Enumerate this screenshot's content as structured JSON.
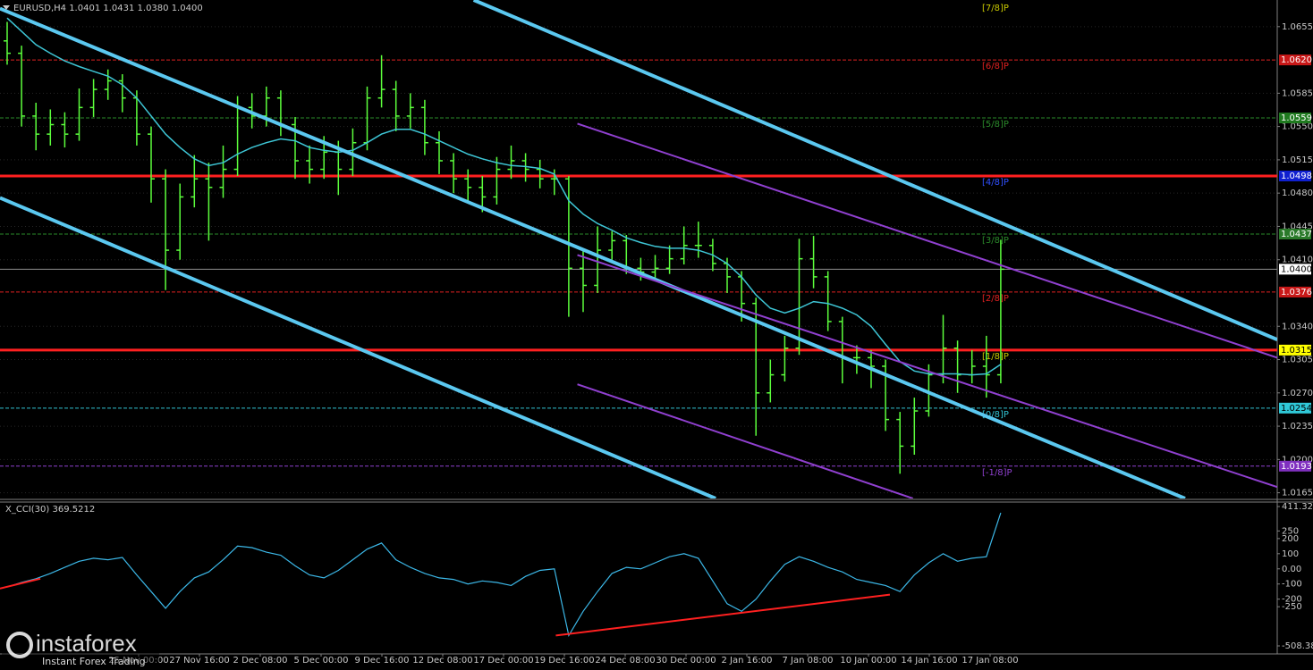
{
  "chart_data": {
    "type": "candlestick",
    "title": "EURUSD,H4  1.0401 1.0431 1.0380 1.0400",
    "x_labels": [
      "25 Nov 00:00",
      "27 Nov 16:00",
      "2 Dec 08:00",
      "5 Dec 00:00",
      "9 Dec 16:00",
      "12 Dec 08:00",
      "17 Dec 00:00",
      "19 Dec 16:00",
      "24 Dec 08:00",
      "30 Dec 00:00",
      "2 Jan 16:00",
      "7 Jan 08:00",
      "10 Jan 00:00",
      "14 Jan 16:00",
      "17 Jan 08:00"
    ],
    "color": "#5cff3c",
    "open": [
      1.064,
      1.0627,
      1.0561,
      1.0542,
      1.0552,
      1.0542,
      1.057,
      1.0589,
      1.0598,
      1.058,
      1.0542,
      1.0495,
      1.042,
      1.0476,
      1.0495,
      1.0486,
      1.0505,
      1.057,
      1.0561,
      1.058,
      1.0552,
      1.0514,
      1.0505,
      1.0523,
      1.0505,
      1.0533,
      1.058,
      1.0589,
      1.0561,
      1.057,
      1.0533,
      1.0514,
      1.0495,
      1.0486,
      1.0476,
      1.0505,
      1.0514,
      1.0505,
      1.0495,
      1.0495,
      1.0401,
      1.0383,
      1.042,
      1.043,
      1.0401,
      1.0397,
      1.0401,
      1.0411,
      1.0425,
      1.0425,
      1.0406,
      1.0392,
      1.0364,
      1.027,
      1.0289,
      1.0317,
      1.0411,
      1.0392,
      1.0345,
      1.0307,
      1.0307,
      1.0298,
      1.0242,
      1.0214,
      1.0251,
      1.0289,
      1.0317,
      1.0289,
      1.0298,
      1.0289
    ],
    "high": [
      1.066,
      1.0635,
      1.0575,
      1.0568,
      1.0565,
      1.059,
      1.06,
      1.061,
      1.0605,
      1.0588,
      1.055,
      1.0505,
      1.049,
      1.052,
      1.0512,
      1.053,
      1.0582,
      1.0585,
      1.0592,
      1.0588,
      1.056,
      1.053,
      1.054,
      1.0535,
      1.0548,
      1.0592,
      1.0625,
      1.0598,
      1.0585,
      1.0578,
      1.0545,
      1.0522,
      1.0505,
      1.0498,
      1.0518,
      1.053,
      1.0522,
      1.0515,
      1.0505,
      1.0498,
      1.042,
      1.0445,
      1.044,
      1.0436,
      1.0412,
      1.0415,
      1.0425,
      1.0445,
      1.045,
      1.0432,
      1.0412,
      1.0398,
      1.037,
      1.0305,
      1.033,
      1.0432,
      1.0435,
      1.0398,
      1.035,
      1.032,
      1.0315,
      1.0305,
      1.025,
      1.0265,
      1.03,
      1.0352,
      1.0325,
      1.0315,
      1.033,
      1.0431
    ],
    "low": [
      1.0615,
      1.055,
      1.0525,
      1.053,
      1.0528,
      1.0535,
      1.056,
      1.0578,
      1.0565,
      1.053,
      1.047,
      1.0378,
      1.041,
      1.0465,
      1.043,
      1.0475,
      1.0498,
      1.0548,
      1.055,
      1.054,
      1.0495,
      1.049,
      1.0495,
      1.0478,
      1.0498,
      1.0525,
      1.057,
      1.0545,
      1.0548,
      1.052,
      1.05,
      1.048,
      1.047,
      1.046,
      1.0468,
      1.0495,
      1.0492,
      1.0485,
      1.0478,
      1.035,
      1.0355,
      1.0375,
      1.041,
      1.0395,
      1.0388,
      1.039,
      1.0395,
      1.0405,
      1.0412,
      1.0398,
      1.0375,
      1.0345,
      1.0225,
      1.026,
      1.0282,
      1.031,
      1.038,
      1.0335,
      1.028,
      1.029,
      1.0275,
      1.023,
      1.0185,
      1.0205,
      1.0245,
      1.028,
      1.027,
      1.028,
      1.0265,
      1.028
    ],
    "close": [
      1.0627,
      1.0561,
      1.0542,
      1.0552,
      1.0542,
      1.057,
      1.0589,
      1.0598,
      1.058,
      1.0542,
      1.0495,
      1.042,
      1.0476,
      1.0495,
      1.0486,
      1.0505,
      1.057,
      1.0561,
      1.058,
      1.0552,
      1.0514,
      1.0505,
      1.0523,
      1.0505,
      1.0533,
      1.058,
      1.0589,
      1.0561,
      1.057,
      1.0533,
      1.0514,
      1.0495,
      1.0486,
      1.0476,
      1.0505,
      1.0514,
      1.0505,
      1.0495,
      1.0495,
      1.0401,
      1.0383,
      1.042,
      1.043,
      1.0401,
      1.0397,
      1.0401,
      1.0411,
      1.0425,
      1.0425,
      1.0406,
      1.0392,
      1.0364,
      1.027,
      1.0289,
      1.0317,
      1.0411,
      1.0392,
      1.0345,
      1.0307,
      1.0307,
      1.0298,
      1.0242,
      1.0214,
      1.0251,
      1.0289,
      1.0317,
      1.0289,
      1.0298,
      1.0289,
      1.04
    ],
    "ma": {
      "color": "#3ec6d6",
      "values": [
        1.0664,
        1.065,
        1.0636,
        1.0627,
        1.0619,
        1.0613,
        1.0608,
        1.0603,
        1.0594,
        1.058,
        1.0561,
        1.0542,
        1.0528,
        1.0516,
        1.0509,
        1.0512,
        1.0521,
        1.0528,
        1.0533,
        1.0537,
        1.0535,
        1.0528,
        1.0525,
        1.0523,
        1.0525,
        1.0533,
        1.0542,
        1.0547,
        1.0547,
        1.0542,
        1.0535,
        1.0528,
        1.0521,
        1.0516,
        1.0512,
        1.0509,
        1.0508,
        1.0506,
        1.05,
        1.0472,
        1.0458,
        1.0448,
        1.0441,
        1.0433,
        1.0428,
        1.0424,
        1.0422,
        1.0422,
        1.042,
        1.0415,
        1.0406,
        1.0392,
        1.0373,
        1.0359,
        1.0354,
        1.0359,
        1.0366,
        1.0364,
        1.0359,
        1.0352,
        1.034,
        1.0321,
        1.0303,
        1.0293,
        1.029,
        1.029,
        1.029,
        1.0289,
        1.029,
        1.03
      ]
    },
    "ylim": [
      1.0159,
      1.0683
    ],
    "yticks": [
      1.0655,
      1.0585,
      {
        "value": 1.055,
        "label": "1.0550"
      },
      1.0515,
      {
        "value": 1.048,
        "label": "1.0480"
      },
      1.0445,
      {
        "value": 1.041,
        "label": "1.0410"
      },
      {
        "value": 1.034,
        "label": "1.0340"
      },
      1.0305,
      {
        "value": 1.027,
        "label": "1.0270"
      },
      1.0235,
      {
        "value": 1.02,
        "label": "1.0200"
      },
      1.0165
    ],
    "grid": true,
    "levels": [
      {
        "name": "[7/8]P",
        "value": 1.0681,
        "color": "#c8c800",
        "width": 0
      },
      {
        "name": "[6/8]P",
        "value": 1.062,
        "label": "1.0620",
        "color": "#e02020",
        "width": 1,
        "box": "#c81818",
        "box_text": "#ffffff"
      },
      {
        "name": "[5/8]P",
        "value": 1.0559,
        "label": "1.0559",
        "color": "#2a8a2a",
        "width": 1,
        "box": "#1f7a1f",
        "box_text": "#ffffff"
      },
      {
        "name": "[4/8]P",
        "value": 1.0498,
        "label": "1.0498",
        "color": "#ff2020",
        "name_color": "#3050ff",
        "width": 3,
        "box": "#1020d0",
        "box_text": "#ffffff"
      },
      {
        "name": "[3/8]P",
        "value": 1.0437,
        "label": "1.0437",
        "color": "#2a8a2a",
        "width": 1,
        "box": "#2a7a2a",
        "box_text": "#ffffff"
      },
      {
        "name": "[2/8]P",
        "value": 1.0376,
        "label": "1.0376",
        "color": "#e02020",
        "width": 1,
        "box": "#c81818",
        "box_text": "#ffffff"
      },
      {
        "name": "[1/8]P",
        "value": 1.0315,
        "label": "1.0315",
        "color": "#ff2020",
        "name_color": "#c8c800",
        "width": 3,
        "box": "#ffff00",
        "box_text": "#000000"
      },
      {
        "name": "[0/8]P",
        "value": 1.0254,
        "label": "1.0254",
        "color": "#30c0d0",
        "width": 1,
        "box": "#30c8d8",
        "box_text": "#000000"
      },
      {
        "name": "[-1/8]P",
        "value": 1.0193,
        "label": "1.0193",
        "color": "#9040d0",
        "width": 1,
        "box": "#8030c0",
        "box_text": "#ffffff"
      }
    ],
    "price_line": {
      "value": 1.04,
      "label": "1.0400",
      "color": "#909090",
      "box": "#ffffff",
      "box_text": "#000000"
    },
    "trendlines": [
      {
        "from": [
          32.4,
          1.0683
        ],
        "to": [
          88.2,
          1.0326
        ],
        "color": "#5bc8f0",
        "width": 4
      },
      {
        "from": [
          -0.5,
          1.0674
        ],
        "to": [
          81.8,
          1.0159
        ],
        "color": "#5bc8f0",
        "width": 4
      },
      {
        "from": [
          -0.5,
          1.0475
        ],
        "to": [
          49.2,
          1.0159
        ],
        "color": "#5bc8f0",
        "width": 4
      },
      {
        "from": [
          39.6,
          1.0553
        ],
        "to": [
          88.2,
          1.0307
        ],
        "color": "#9040d0",
        "width": 2
      },
      {
        "from": [
          39.6,
          1.0415
        ],
        "to": [
          88.2,
          1.0171
        ],
        "color": "#9040d0",
        "width": 2
      },
      {
        "from": [
          39.6,
          1.0279
        ],
        "to": [
          62.9,
          1.0159
        ],
        "color": "#9040d0",
        "width": 2
      }
    ],
    "cci": {
      "label": "X_CCI(30) 369.5212",
      "color": "#3cb8e8",
      "values": [
        -120,
        -90,
        -65,
        -30,
        10,
        50,
        70,
        60,
        75,
        -40,
        -150,
        -260,
        -150,
        -60,
        -20,
        60,
        150,
        140,
        110,
        90,
        20,
        -40,
        -60,
        -10,
        60,
        130,
        170,
        60,
        10,
        -30,
        -60,
        -70,
        -100,
        -80,
        -90,
        -110,
        -50,
        -10,
        0,
        -440,
        -280,
        -150,
        -30,
        10,
        0,
        40,
        80,
        100,
        70,
        -80,
        -230,
        -280,
        -200,
        -80,
        30,
        80,
        50,
        10,
        -20,
        -70,
        -90,
        -110,
        -150,
        -40,
        40,
        100,
        50,
        70,
        80,
        369.5212
      ],
      "ylim": [
        -508.383,
        411.3262
      ],
      "yticks": [
        411.3262,
        250,
        200,
        100,
        {
          "value": 0,
          "label": "0.00"
        },
        -100,
        -200,
        -250,
        -508.383
      ],
      "trendlines": [
        {
          "from": [
            38.1,
            -440
          ],
          "to": [
            61.3,
            -170
          ],
          "color": "#ff2020",
          "width": 2
        },
        {
          "from": [
            -0.5,
            -130
          ],
          "to": [
            2.3,
            -65
          ],
          "color": "#ff2020",
          "width": 2
        }
      ]
    },
    "watermark": {
      "brand": "instaforex",
      "tagline": "Instant Forex Trading"
    }
  }
}
